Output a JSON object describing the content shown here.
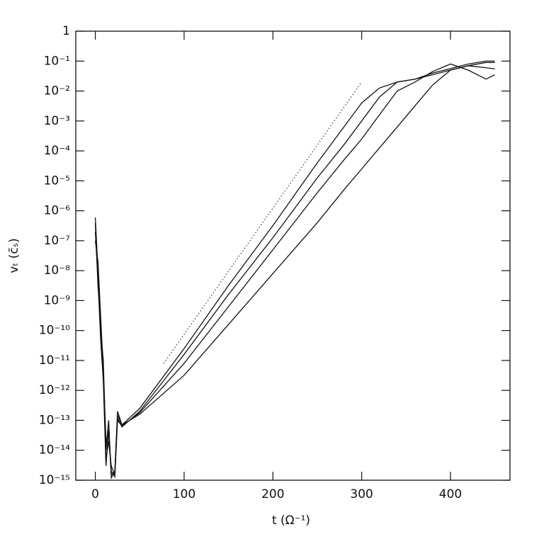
{
  "chart_data": {
    "type": "line",
    "xlabel": "t (Ω⁻¹)",
    "ylabel": "vₜ (c̄ₛ)",
    "xlim": [
      -22,
      467
    ],
    "xticks": [
      0,
      100,
      200,
      300,
      400
    ],
    "ylim": [
      1e-15,
      1
    ],
    "log_y": true,
    "yticks": [
      1,
      {
        "value": 0.1,
        "label": "10⁻¹"
      },
      {
        "value": 0.01,
        "label": "10⁻²"
      },
      {
        "value": 0.001,
        "label": "10⁻³"
      },
      {
        "value": 0.0001,
        "label": "10⁻⁴"
      },
      {
        "value": 1e-05,
        "label": "10⁻⁵"
      },
      {
        "value": 1e-06,
        "label": "10⁻⁶"
      },
      {
        "value": 1e-07,
        "label": "10⁻⁷"
      },
      {
        "value": 1e-08,
        "label": "10⁻⁸"
      },
      {
        "value": 1e-09,
        "label": "10⁻⁹"
      },
      {
        "value": 1e-10,
        "label": "10⁻¹⁰"
      },
      {
        "value": 1e-11,
        "label": "10⁻¹¹"
      },
      {
        "value": 1e-12,
        "label": "10⁻¹²"
      },
      {
        "value": 1e-13,
        "label": "10⁻¹³"
      },
      {
        "value": 1e-14,
        "label": "10⁻¹⁴"
      },
      {
        "value": 1e-15,
        "label": "10⁻¹⁵"
      }
    ],
    "x": [
      0,
      3,
      6,
      9,
      12,
      15,
      18,
      22,
      25,
      30,
      50,
      100,
      150,
      200,
      250,
      280,
      300,
      320,
      340,
      360,
      380,
      400,
      420,
      440,
      450
    ],
    "series": [
      {
        "color": "#111111",
        "values": [
          6e-07,
          1e-08,
          1e-10,
          1e-11,
          1e-14,
          1e-13,
          1.2e-15,
          2e-15,
          2e-13,
          7e-14,
          2.5e-13,
          2.5e-11,
          3.2e-09,
          3.2e-07,
          4e-05,
          0.00063,
          0.004,
          0.0126,
          0.02,
          0.025,
          0.035,
          0.05,
          0.07,
          0.06,
          0.055
        ]
      },
      {
        "color": "#111111",
        "values": [
          4e-07,
          3e-09,
          2e-10,
          3e-12,
          5e-15,
          2e-14,
          3e-15,
          1.5e-15,
          1.2e-13,
          6e-14,
          2e-13,
          1.6e-11,
          1.6e-09,
          1.26e-07,
          1.26e-05,
          0.00016,
          0.001,
          0.0063,
          0.02,
          0.025,
          0.04,
          0.056,
          0.08,
          0.1,
          0.1
        ]
      },
      {
        "color": "#111111",
        "values": [
          2e-07,
          5e-09,
          5e-11,
          2e-12,
          3e-15,
          5e-14,
          2e-15,
          1.3e-15,
          1e-13,
          6.5e-14,
          1.8e-13,
          8e-12,
          6.3e-10,
          5e-08,
          4e-06,
          5e-05,
          0.00025,
          0.0016,
          0.01,
          0.02,
          0.045,
          0.08,
          0.05,
          0.025,
          0.035
        ]
      },
      {
        "color": "#111111",
        "values": [
          1e-07,
          2e-08,
          3e-10,
          5e-12,
          2e-14,
          4e-14,
          1.5e-15,
          2e-15,
          1.5e-13,
          7e-14,
          1.6e-13,
          3.2e-12,
          1.6e-10,
          8e-09,
          4e-07,
          5e-06,
          2.5e-05,
          0.000126,
          0.00063,
          0.0032,
          0.016,
          0.05,
          0.07,
          0.09,
          0.09
        ]
      },
      {
        "color": "#333333",
        "dash": "dotted",
        "x": [
          77,
          300
        ],
        "values": [
          8e-12,
          0.02
        ]
      }
    ]
  }
}
